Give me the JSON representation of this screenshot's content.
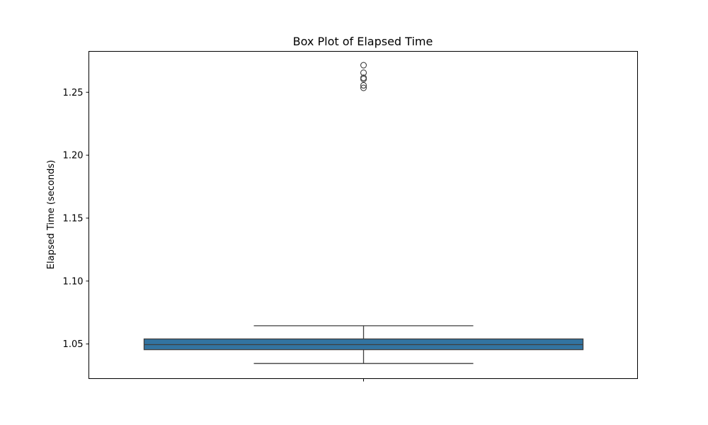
{
  "chart_data": {
    "type": "box",
    "title": "Box Plot of Elapsed Time",
    "xlabel": "",
    "ylabel": "Elapsed Time (seconds)",
    "ylim": [
      1.0225,
      1.2825
    ],
    "yticks": [
      1.05,
      1.1,
      1.15,
      1.2,
      1.25
    ],
    "ytick_labels": [
      "1.05",
      "1.10",
      "1.15",
      "1.20",
      "1.25"
    ],
    "grid": false,
    "legend": "none",
    "box": {
      "whisker_low": 1.0345,
      "q1": 1.0455,
      "median": 1.0495,
      "q3": 1.054,
      "whisker_high": 1.0645,
      "outliers": [
        1.2715,
        1.2655,
        1.2615,
        1.2605,
        1.2555,
        1.2535
      ]
    },
    "colors": {
      "box_fill": "#3274a1",
      "lines": "#3f3f3f",
      "axes": "#000000"
    }
  }
}
